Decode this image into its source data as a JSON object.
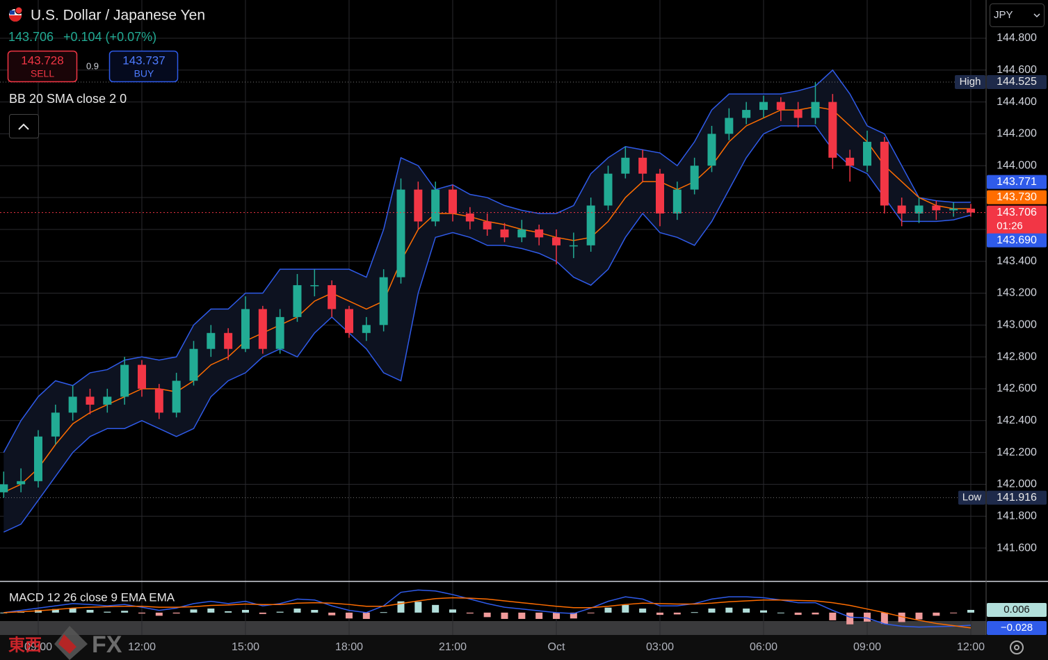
{
  "header": {
    "title": "U.S. Dollar / Japanese Yen",
    "price": "143.706",
    "change": "+0.104 (+0.07%)",
    "sell": {
      "price": "143.728",
      "label": "SELL"
    },
    "spread": "0.9",
    "buy": {
      "price": "143.737",
      "label": "BUY"
    },
    "currency": "JPY"
  },
  "watermark": [
    "東西",
    "FX"
  ],
  "chart_data": [
    {
      "type": "candlestick",
      "title": "BB 20 SMA close 2 0",
      "x": [
        8,
        8.5,
        9,
        9.5,
        10,
        10.5,
        11,
        11.5,
        12,
        12.5,
        13,
        13.5,
        14,
        14.5,
        15,
        15.5,
        16,
        16.5,
        17,
        17.5,
        18,
        18.5,
        19,
        19.5,
        20,
        20.5,
        21,
        21.5,
        22,
        22.5,
        23,
        23.5,
        24,
        24.5,
        25,
        25.5,
        26,
        26.5,
        27,
        27.5,
        28,
        28.5,
        29,
        29.5,
        30,
        30.5,
        31,
        31.5,
        32,
        32.5,
        33,
        33.5,
        34,
        34.5,
        35,
        35.5,
        36
      ],
      "open": [
        141.95,
        142.0,
        142.02,
        142.3,
        142.45,
        142.55,
        142.5,
        142.55,
        142.75,
        142.6,
        142.45,
        142.65,
        142.85,
        142.95,
        142.85,
        143.1,
        142.85,
        143.05,
        143.25,
        143.25,
        143.1,
        142.95,
        143.0,
        143.3,
        143.85,
        143.65,
        143.85,
        143.7,
        143.65,
        143.6,
        143.55,
        143.6,
        143.55,
        143.5,
        143.5,
        143.75,
        143.95,
        144.05,
        143.95,
        143.7,
        143.85,
        144.0,
        144.2,
        144.3,
        144.35,
        144.4,
        144.35,
        144.3,
        144.4,
        144.05,
        144.0,
        144.15,
        143.75,
        143.7,
        143.75,
        143.72,
        143.73
      ],
      "high": [
        142.08,
        142.1,
        142.34,
        142.5,
        142.62,
        142.6,
        142.6,
        142.8,
        142.78,
        142.63,
        142.7,
        142.9,
        143.0,
        142.98,
        143.18,
        143.12,
        143.1,
        143.32,
        143.35,
        143.28,
        143.12,
        143.05,
        143.35,
        143.92,
        143.9,
        143.9,
        143.88,
        143.74,
        143.7,
        143.64,
        143.66,
        143.63,
        143.6,
        143.58,
        143.8,
        144.0,
        144.12,
        144.1,
        143.98,
        143.9,
        144.05,
        144.25,
        144.36,
        144.4,
        144.44,
        144.43,
        144.4,
        144.525,
        144.45,
        144.1,
        144.22,
        144.18,
        143.8,
        143.8,
        143.78,
        143.77,
        143.76
      ],
      "low": [
        141.916,
        141.95,
        141.98,
        142.25,
        142.4,
        142.44,
        142.45,
        142.5,
        142.55,
        142.41,
        142.42,
        142.62,
        142.8,
        142.78,
        142.83,
        142.82,
        142.82,
        143.02,
        143.18,
        143.05,
        142.92,
        142.9,
        142.96,
        143.26,
        143.6,
        143.62,
        143.65,
        143.6,
        143.56,
        143.52,
        143.52,
        143.5,
        143.38,
        143.42,
        143.46,
        143.72,
        143.92,
        143.9,
        143.62,
        143.66,
        143.82,
        143.96,
        144.16,
        144.26,
        144.3,
        144.28,
        144.24,
        144.26,
        143.98,
        143.9,
        143.96,
        143.7,
        143.62,
        143.64,
        143.66,
        143.68,
        143.68
      ],
      "close": [
        142.0,
        142.02,
        142.3,
        142.45,
        142.55,
        142.5,
        142.55,
        142.75,
        142.6,
        142.45,
        142.65,
        142.85,
        142.95,
        142.85,
        143.1,
        142.85,
        143.05,
        143.25,
        143.25,
        143.1,
        142.95,
        143.0,
        143.3,
        143.85,
        143.65,
        143.85,
        143.7,
        143.65,
        143.6,
        143.55,
        143.6,
        143.55,
        143.5,
        143.5,
        143.75,
        143.95,
        144.05,
        143.95,
        143.7,
        143.85,
        144.0,
        144.2,
        144.3,
        144.35,
        144.4,
        144.35,
        144.3,
        144.4,
        144.05,
        144.0,
        144.15,
        143.75,
        143.7,
        143.75,
        143.72,
        143.73,
        143.706
      ],
      "up_color": "#22ab94",
      "down_color": "#f23645",
      "band_fill": "#0d1220",
      "series": [
        {
          "color": "#2f5bea",
          "values": [
            142.2,
            142.4,
            142.55,
            142.65,
            142.62,
            142.7,
            142.72,
            142.78,
            142.8,
            142.78,
            142.8,
            143.0,
            143.1,
            143.1,
            143.2,
            143.2,
            143.35,
            143.35,
            143.35,
            143.35,
            143.35,
            143.3,
            143.6,
            144.05,
            144.0,
            143.85,
            143.88,
            143.82,
            143.8,
            143.75,
            143.72,
            143.7,
            143.7,
            143.75,
            143.95,
            144.05,
            144.12,
            144.1,
            144.08,
            144.0,
            144.15,
            144.35,
            144.45,
            144.45,
            144.45,
            144.45,
            144.47,
            144.5,
            144.6,
            144.45,
            144.25,
            144.2,
            144.0,
            143.8,
            143.78,
            143.77,
            143.771
          ]
        },
        {
          "color": "#ff6d00",
          "values": [
            141.95,
            142.0,
            142.1,
            142.25,
            142.38,
            142.45,
            142.5,
            142.55,
            142.6,
            142.6,
            142.58,
            142.65,
            142.75,
            142.8,
            142.9,
            142.95,
            143.0,
            143.05,
            143.15,
            143.2,
            143.15,
            143.1,
            143.15,
            143.4,
            143.6,
            143.7,
            143.7,
            143.68,
            143.65,
            143.63,
            143.6,
            143.58,
            143.55,
            143.53,
            143.55,
            143.65,
            143.8,
            143.9,
            143.9,
            143.85,
            143.9,
            144.0,
            144.15,
            144.25,
            144.3,
            144.35,
            144.35,
            144.37,
            144.35,
            144.25,
            144.15,
            144.0,
            143.9,
            143.8,
            143.75,
            143.73,
            143.73
          ]
        },
        {
          "color": "#2f5bea",
          "values": [
            141.7,
            141.75,
            141.9,
            142.05,
            142.2,
            142.3,
            142.35,
            142.35,
            142.4,
            142.35,
            142.3,
            142.35,
            142.55,
            142.65,
            142.7,
            142.8,
            142.85,
            142.8,
            142.95,
            143.05,
            142.95,
            142.85,
            142.7,
            142.65,
            143.2,
            143.55,
            143.58,
            143.55,
            143.5,
            143.5,
            143.48,
            143.45,
            143.4,
            143.3,
            143.25,
            143.35,
            143.55,
            143.7,
            143.58,
            143.55,
            143.5,
            143.65,
            143.85,
            144.05,
            144.2,
            144.25,
            144.25,
            144.25,
            144.1,
            144.0,
            143.95,
            143.8,
            143.65,
            143.65,
            143.65,
            143.66,
            143.69
          ]
        }
      ],
      "xlim": [
        7.893,
        36.443
      ],
      "xticks": [
        {
          "value": 9,
          "label": "09:00"
        },
        {
          "value": 12,
          "label": "12:00"
        },
        {
          "value": 15,
          "label": "15:00"
        },
        {
          "value": 18,
          "label": "18:00"
        },
        {
          "value": 21,
          "label": "21:00"
        },
        {
          "value": 24,
          "label": "Oct"
        },
        {
          "value": 27,
          "label": "03:00"
        },
        {
          "value": 30,
          "label": "06:00"
        },
        {
          "value": 33,
          "label": "09:00"
        },
        {
          "value": 36,
          "label": "12:00"
        }
      ],
      "ylim": [
        141.395,
        145.04
      ],
      "yticks": [
        {
          "value": 141.6,
          "label": "141.600"
        },
        {
          "value": 141.8,
          "label": "141.800"
        },
        {
          "value": 142.0,
          "label": "142.000"
        },
        {
          "value": 142.2,
          "label": "142.200"
        },
        {
          "value": 142.4,
          "label": "142.400"
        },
        {
          "value": 142.6,
          "label": "142.600"
        },
        {
          "value": 142.8,
          "label": "142.800"
        },
        {
          "value": 143.0,
          "label": "143.000"
        },
        {
          "value": 143.2,
          "label": "143.200"
        },
        {
          "value": 143.4,
          "label": "143.400"
        },
        {
          "value": 143.6,
          "label": "143.600"
        },
        {
          "value": 143.8,
          "label": "143.800"
        },
        {
          "value": 144.0,
          "label": "144.000"
        },
        {
          "value": 144.2,
          "label": "144.200"
        },
        {
          "value": 144.4,
          "label": "144.400"
        },
        {
          "value": 144.6,
          "label": "144.600"
        },
        {
          "value": 144.8,
          "label": "144.800"
        }
      ],
      "grid": true,
      "high_line": {
        "label": "High",
        "value": 144.525
      },
      "low_line": {
        "label": "Low",
        "value": 141.916
      },
      "price_labels": [
        {
          "value": 143.771,
          "label": "143.771",
          "color": "#2f5bea"
        },
        {
          "value": 143.73,
          "label": "143.730",
          "color": "#ff6d00"
        },
        {
          "value": 143.706,
          "label": "143.706",
          "color": "#f23645",
          "countdown": "01:26"
        },
        {
          "value": 143.69,
          "label": "143.690",
          "color": "#2f5bea"
        }
      ]
    },
    {
      "type": "macd",
      "title": "MACD 12 26 close 9 EMA EMA",
      "series": [
        {
          "color": "#2f5bea",
          "values": [
            0,
            0.005,
            0.01,
            0.015,
            0.02,
            0.018,
            0.015,
            0.018,
            0.012,
            0.005,
            0.01,
            0.02,
            0.025,
            0.02,
            0.025,
            0.015,
            0.02,
            0.03,
            0.028,
            0.015,
            0.005,
            0,
            0.015,
            0.045,
            0.05,
            0.048,
            0.04,
            0.03,
            0.02,
            0.012,
            0.008,
            0.004,
            0,
            -0.002,
            0.01,
            0.025,
            0.035,
            0.03,
            0.015,
            0.015,
            0.02,
            0.03,
            0.035,
            0.035,
            0.033,
            0.028,
            0.022,
            0.022,
            0.005,
            -0.01,
            -0.012,
            -0.025,
            -0.03,
            -0.032,
            -0.031,
            -0.03,
            -0.028
          ]
        },
        {
          "color": "#ff6d00",
          "values": [
            0,
            0.002,
            0.004,
            0.007,
            0.01,
            0.012,
            0.013,
            0.014,
            0.014,
            0.012,
            0.012,
            0.013,
            0.016,
            0.017,
            0.019,
            0.018,
            0.018,
            0.021,
            0.022,
            0.021,
            0.018,
            0.014,
            0.014,
            0.02,
            0.026,
            0.031,
            0.033,
            0.032,
            0.03,
            0.026,
            0.022,
            0.018,
            0.014,
            0.011,
            0.011,
            0.014,
            0.018,
            0.021,
            0.02,
            0.019,
            0.019,
            0.021,
            0.024,
            0.026,
            0.028,
            0.028,
            0.027,
            0.026,
            0.022,
            0.016,
            0.008,
            0,
            -0.009,
            -0.017,
            -0.024,
            -0.029,
            -0.034
          ]
        }
      ],
      "histogram": {
        "values": [
          0,
          0.003,
          0.006,
          0.008,
          0.01,
          0.006,
          0.002,
          0.004,
          -0.002,
          -0.007,
          -0.002,
          0.007,
          0.009,
          0.003,
          0.006,
          -0.003,
          0.002,
          0.009,
          0.006,
          -0.006,
          -0.013,
          -0.014,
          0.001,
          0.025,
          0.024,
          0.017,
          0.007,
          -0.002,
          -0.01,
          -0.014,
          -0.014,
          -0.014,
          -0.014,
          -0.013,
          -0.001,
          0.011,
          0.017,
          0.009,
          -0.005,
          -0.004,
          0.001,
          0.009,
          0.011,
          0.009,
          0.005,
          0,
          -0.005,
          -0.004,
          -0.017,
          -0.026,
          -0.02,
          -0.025,
          -0.021,
          -0.015,
          -0.007,
          -0.001,
          0.006
        ],
        "positive_color": "#b2dfdb",
        "negative_color": "#ef9a9a"
      },
      "ylim": [
        -0.048,
        0.063
      ],
      "price_labels": [
        {
          "value": 0.006,
          "label": "0.006",
          "color": "#b2dfdb"
        },
        {
          "value": -0.028,
          "label": "−0.028",
          "color": "#2f5bea"
        }
      ]
    }
  ]
}
